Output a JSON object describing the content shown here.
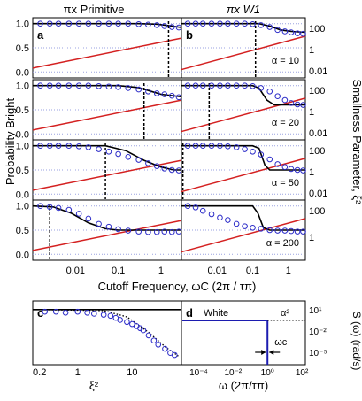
{
  "colors": {
    "fit": "#000000",
    "data": "#2c2cc8",
    "ref": "#d42020",
    "grid": "#9aa2e0",
    "white": "#1c1cb0"
  },
  "left_axis_label": "Probability Bright",
  "right_axis_label": "Smallness Parameter, ξ²",
  "bottom_axis_label": "Cutoff Frequency, ωC (2π / τπ)",
  "alpha_labels": [
    "α = 10",
    "α = 20",
    "α = 50",
    "α = 200"
  ],
  "chart_data": [
    {
      "id": "a",
      "type": "scatter",
      "title": "πx Primitive",
      "x_scale": "log",
      "x_range": [
        0.001,
        3
      ],
      "y_range": [
        -0.05,
        1.05
      ],
      "y_ticks": [
        "0.0",
        "0.5",
        "1.0"
      ],
      "x_ticks": [
        "0.01",
        "0.1",
        "1"
      ],
      "panels": [
        {
          "alpha": 10,
          "cutoff": 1.5,
          "data": [
            [
              0.0015,
              1.0
            ],
            [
              0.0025,
              1.0
            ],
            [
              0.004,
              1.0
            ],
            [
              0.007,
              1.0
            ],
            [
              0.012,
              1.0
            ],
            [
              0.02,
              1.0
            ],
            [
              0.035,
              1.0
            ],
            [
              0.06,
              1.0
            ],
            [
              0.1,
              1.0
            ],
            [
              0.17,
              1.0
            ],
            [
              0.3,
              0.99
            ],
            [
              0.5,
              0.98
            ],
            [
              0.8,
              0.97
            ],
            [
              1.2,
              0.95
            ],
            [
              1.8,
              0.93
            ],
            [
              2.6,
              0.92
            ]
          ],
          "fit": [
            [
              0.001,
              1.0
            ],
            [
              0.3,
              1.0
            ],
            [
              0.8,
              0.99
            ],
            [
              1.5,
              0.96
            ],
            [
              3,
              0.92
            ]
          ]
        },
        {
          "alpha": 20,
          "cutoff": 0.4,
          "data": [
            [
              0.0015,
              1.0
            ],
            [
              0.0025,
              1.0
            ],
            [
              0.004,
              1.0
            ],
            [
              0.007,
              1.0
            ],
            [
              0.012,
              1.0
            ],
            [
              0.02,
              1.0
            ],
            [
              0.035,
              0.99
            ],
            [
              0.06,
              0.98
            ],
            [
              0.1,
              0.97
            ],
            [
              0.17,
              0.95
            ],
            [
              0.3,
              0.92
            ],
            [
              0.5,
              0.88
            ],
            [
              0.8,
              0.84
            ],
            [
              1.2,
              0.82
            ],
            [
              1.8,
              0.79
            ],
            [
              2.6,
              0.76
            ]
          ],
          "fit": [
            [
              0.001,
              1.0
            ],
            [
              0.1,
              1.0
            ],
            [
              0.3,
              0.96
            ],
            [
              0.6,
              0.88
            ],
            [
              1,
              0.82
            ],
            [
              3,
              0.77
            ]
          ]
        },
        {
          "alpha": 50,
          "cutoff": 0.05,
          "data": [
            [
              0.0015,
              1.0
            ],
            [
              0.0025,
              1.0
            ],
            [
              0.004,
              1.0
            ],
            [
              0.007,
              1.0
            ],
            [
              0.012,
              0.99
            ],
            [
              0.02,
              0.97
            ],
            [
              0.035,
              0.93
            ],
            [
              0.06,
              0.88
            ],
            [
              0.1,
              0.83
            ],
            [
              0.17,
              0.77
            ],
            [
              0.3,
              0.71
            ],
            [
              0.5,
              0.64
            ],
            [
              0.8,
              0.58
            ],
            [
              1.2,
              0.53
            ],
            [
              1.8,
              0.5
            ],
            [
              2.6,
              0.49
            ]
          ],
          "fit": [
            [
              0.001,
              1.0
            ],
            [
              0.05,
              1.0
            ],
            [
              0.15,
              0.9
            ],
            [
              0.4,
              0.7
            ],
            [
              1,
              0.56
            ],
            [
              2,
              0.5
            ],
            [
              3,
              0.5
            ]
          ]
        },
        {
          "alpha": 200,
          "cutoff": 0.0025,
          "data": [
            [
              0.0015,
              1.0
            ],
            [
              0.0025,
              0.98
            ],
            [
              0.004,
              0.96
            ],
            [
              0.007,
              0.92
            ],
            [
              0.012,
              0.84
            ],
            [
              0.02,
              0.74
            ],
            [
              0.035,
              0.63
            ],
            [
              0.06,
              0.57
            ],
            [
              0.1,
              0.52
            ],
            [
              0.17,
              0.49
            ],
            [
              0.3,
              0.47
            ],
            [
              0.5,
              0.46
            ],
            [
              0.8,
              0.46
            ],
            [
              1.2,
              0.47
            ],
            [
              1.8,
              0.46
            ],
            [
              2.6,
              0.47
            ]
          ],
          "fit": [
            [
              0.001,
              1.0
            ],
            [
              0.003,
              0.98
            ],
            [
              0.008,
              0.85
            ],
            [
              0.02,
              0.65
            ],
            [
              0.05,
              0.53
            ],
            [
              0.1,
              0.5
            ],
            [
              3,
              0.5
            ]
          ]
        }
      ],
      "ref_line": [
        [
          0.001,
          0.08
        ],
        [
          3,
          0.7
        ]
      ]
    },
    {
      "id": "b",
      "type": "scatter",
      "title": "πx W1",
      "x_scale": "log",
      "x_range": [
        0.001,
        3
      ],
      "right_ticks": [
        "100",
        "1",
        "0.01"
      ],
      "panels": [
        {
          "alpha": 10,
          "cutoff": 0.12,
          "data": [
            [
              0.0015,
              1.0
            ],
            [
              0.0025,
              1.0
            ],
            [
              0.004,
              1.0
            ],
            [
              0.007,
              1.0
            ],
            [
              0.012,
              1.0
            ],
            [
              0.02,
              1.0
            ],
            [
              0.035,
              1.0
            ],
            [
              0.06,
              1.0
            ],
            [
              0.1,
              0.99
            ],
            [
              0.17,
              0.97
            ],
            [
              0.3,
              0.93
            ],
            [
              0.5,
              0.87
            ],
            [
              0.8,
              0.84
            ],
            [
              1.2,
              0.82
            ],
            [
              1.8,
              0.8
            ],
            [
              2.6,
              0.79
            ]
          ],
          "fit": [
            [
              0.001,
              1.0
            ],
            [
              0.15,
              1.0
            ],
            [
              0.3,
              0.95
            ],
            [
              0.6,
              0.87
            ],
            [
              1.2,
              0.84
            ],
            [
              3,
              0.82
            ]
          ]
        },
        {
          "alpha": 20,
          "cutoff": 0.006,
          "data": [
            [
              0.0015,
              1.0
            ],
            [
              0.0025,
              1.0
            ],
            [
              0.004,
              1.0
            ],
            [
              0.007,
              1.0
            ],
            [
              0.012,
              1.0
            ],
            [
              0.02,
              1.0
            ],
            [
              0.035,
              1.0
            ],
            [
              0.06,
              1.0
            ],
            [
              0.1,
              0.99
            ],
            [
              0.17,
              0.95
            ],
            [
              0.3,
              0.88
            ],
            [
              0.5,
              0.78
            ],
            [
              0.8,
              0.7
            ],
            [
              1.2,
              0.64
            ],
            [
              1.8,
              0.61
            ],
            [
              2.6,
              0.6
            ]
          ],
          "fit": [
            [
              0.001,
              1.0
            ],
            [
              0.1,
              1.0
            ],
            [
              0.15,
              0.95
            ],
            [
              0.25,
              0.7
            ],
            [
              0.4,
              0.6
            ],
            [
              1,
              0.6
            ],
            [
              3,
              0.6
            ]
          ]
        },
        {
          "alpha": 50,
          "cutoff": 0.0011,
          "data": [
            [
              0.0015,
              1.0
            ],
            [
              0.0025,
              1.0
            ],
            [
              0.004,
              1.0
            ],
            [
              0.007,
              1.0
            ],
            [
              0.012,
              1.0
            ],
            [
              0.02,
              0.99
            ],
            [
              0.035,
              0.97
            ],
            [
              0.06,
              0.93
            ],
            [
              0.1,
              0.88
            ],
            [
              0.17,
              0.82
            ],
            [
              0.3,
              0.72
            ],
            [
              0.5,
              0.62
            ],
            [
              0.8,
              0.56
            ],
            [
              1.2,
              0.52
            ],
            [
              1.8,
              0.5
            ],
            [
              2.6,
              0.49
            ]
          ],
          "fit": [
            [
              0.001,
              1.0
            ],
            [
              0.1,
              1.0
            ],
            [
              0.15,
              0.95
            ],
            [
              0.22,
              0.6
            ],
            [
              0.3,
              0.5
            ],
            [
              3,
              0.5
            ]
          ]
        },
        {
          "alpha": 200,
          "cutoff": null,
          "data": [
            [
              0.0015,
              1.0
            ],
            [
              0.0025,
              0.97
            ],
            [
              0.004,
              0.9
            ],
            [
              0.007,
              0.83
            ],
            [
              0.012,
              0.76
            ],
            [
              0.02,
              0.71
            ],
            [
              0.035,
              0.63
            ],
            [
              0.06,
              0.58
            ],
            [
              0.1,
              0.55
            ],
            [
              0.17,
              0.53
            ],
            [
              0.3,
              0.5
            ],
            [
              0.5,
              0.49
            ],
            [
              0.8,
              0.49
            ],
            [
              1.2,
              0.48
            ],
            [
              1.8,
              0.47
            ],
            [
              2.6,
              0.47
            ]
          ],
          "fit": [
            [
              0.001,
              1.0
            ],
            [
              0.1,
              1.0
            ],
            [
              0.14,
              0.85
            ],
            [
              0.2,
              0.55
            ],
            [
              0.3,
              0.5
            ],
            [
              3,
              0.5
            ]
          ]
        }
      ],
      "ref_line": [
        [
          0.001,
          0.05
        ],
        [
          3,
          0.74
        ]
      ]
    },
    {
      "id": "c",
      "type": "scatter",
      "xlabel": "ξ²",
      "x_scale": "log",
      "x_ticks": [
        "0.2",
        "1",
        "10"
      ],
      "fit_horizontal": 1.0,
      "data": [
        [
          0.25,
          0.98
        ],
        [
          0.4,
          0.98
        ],
        [
          0.6,
          0.97
        ],
        [
          1,
          0.98
        ],
        [
          1.5,
          0.97
        ],
        [
          2,
          0.96
        ],
        [
          3,
          0.95
        ],
        [
          4,
          0.94
        ],
        [
          5,
          0.92
        ],
        [
          6,
          0.9
        ],
        [
          8,
          0.88
        ],
        [
          10,
          0.86
        ],
        [
          12,
          0.84
        ],
        [
          14,
          0.82
        ],
        [
          16,
          0.8
        ],
        [
          20,
          0.75
        ],
        [
          25,
          0.7
        ],
        [
          30,
          0.66
        ],
        [
          40,
          0.62
        ],
        [
          50,
          0.58
        ],
        [
          60,
          0.56
        ]
      ],
      "dotted": [
        [
          0.2,
          1.0
        ],
        [
          3,
          0.99
        ],
        [
          8,
          0.93
        ],
        [
          20,
          0.78
        ],
        [
          40,
          0.64
        ],
        [
          70,
          0.55
        ]
      ]
    },
    {
      "id": "d",
      "type": "line",
      "xlabel": "ω (2π/τπ)",
      "ylabel": "S (ω) (rad/s)",
      "x_scale": "log",
      "y_scale": "log",
      "x_ticks": [
        "10⁻⁴",
        "10⁻²",
        "10⁰",
        "10²"
      ],
      "y_ticks": [
        "10¹",
        "10⁻²",
        "10⁻⁵"
      ],
      "label_white": "White",
      "label_alpha": "α²",
      "label_cutoff": "ωc",
      "cutoff": 1.0,
      "level": 10
    }
  ]
}
